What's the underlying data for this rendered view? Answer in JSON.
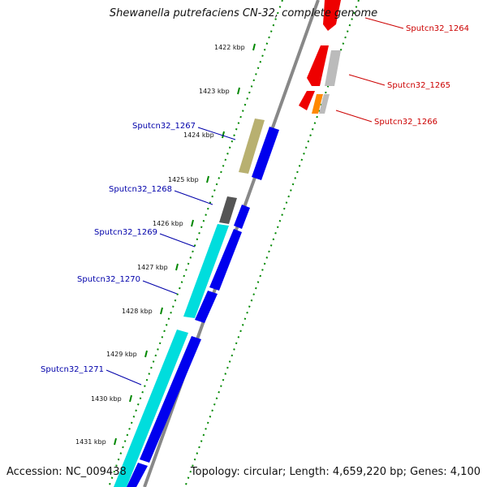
{
  "title": "Shewanella putrefaciens CN-32, complete genome",
  "footer": {
    "accession": "Accession: NC_009438",
    "summary": "Topology: circular; Length: 4,659,220 bp; Genes: 4,100"
  },
  "colors": {
    "forward_cds": "#0000ee",
    "reverse_cds": "#ee0000",
    "tick": "#008800",
    "backbone": "#888888",
    "label_forward": "#0000aa",
    "label_reverse": "#cc0000",
    "rna_cyan": "#00dddd",
    "khaki": "#b8b070",
    "gray_feature": "#555555",
    "orange_feature": "#ff8800",
    "light_gray": "#bbbbbb"
  },
  "ticks": [
    {
      "label": "1422 kbp"
    },
    {
      "label": "1423 kbp"
    },
    {
      "label": "1424 kbp"
    },
    {
      "label": "1425 kbp"
    },
    {
      "label": "1426 kbp"
    },
    {
      "label": "1427 kbp"
    },
    {
      "label": "1428 kbp"
    },
    {
      "label": "1429 kbp"
    },
    {
      "label": "1430 kbp"
    },
    {
      "label": "1431 kbp"
    }
  ],
  "genes": [
    {
      "name": "Sputcn32_1264",
      "strand": "reverse"
    },
    {
      "name": "Sputcn32_1265",
      "strand": "reverse"
    },
    {
      "name": "Sputcn32_1266",
      "strand": "reverse"
    },
    {
      "name": "Sputcn32_1267",
      "strand": "forward"
    },
    {
      "name": "Sputcn32_1268",
      "strand": "forward"
    },
    {
      "name": "Sputcn32_1269",
      "strand": "forward"
    },
    {
      "name": "Sputcn32_1270",
      "strand": "forward"
    },
    {
      "name": "Sputcn32_1271",
      "strand": "forward"
    }
  ]
}
